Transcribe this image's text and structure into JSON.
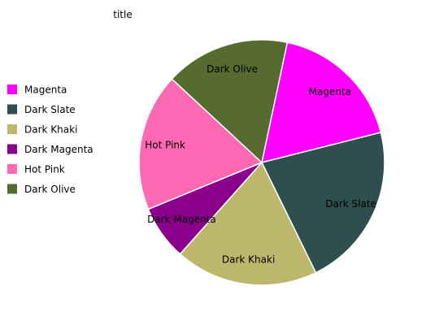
{
  "chart_data": {
    "type": "pie",
    "title": "title",
    "legend_position": "left",
    "start_angle_deg": 78,
    "direction": "clockwise",
    "slices": [
      {
        "name": "Magenta",
        "value": 17.5,
        "color": "#ff00ff"
      },
      {
        "name": "Dark Slate",
        "value": 21.4,
        "color": "#2f4f4f"
      },
      {
        "name": "Dark Khaki",
        "value": 18.6,
        "color": "#bdb76b"
      },
      {
        "name": "Dark Magenta",
        "value": 7.1,
        "color": "#8b008b"
      },
      {
        "name": "Hot Pink",
        "value": 17.9,
        "color": "#ff69b4"
      },
      {
        "name": "Dark Olive",
        "value": 16.2,
        "color": "#556b2f"
      }
    ]
  }
}
